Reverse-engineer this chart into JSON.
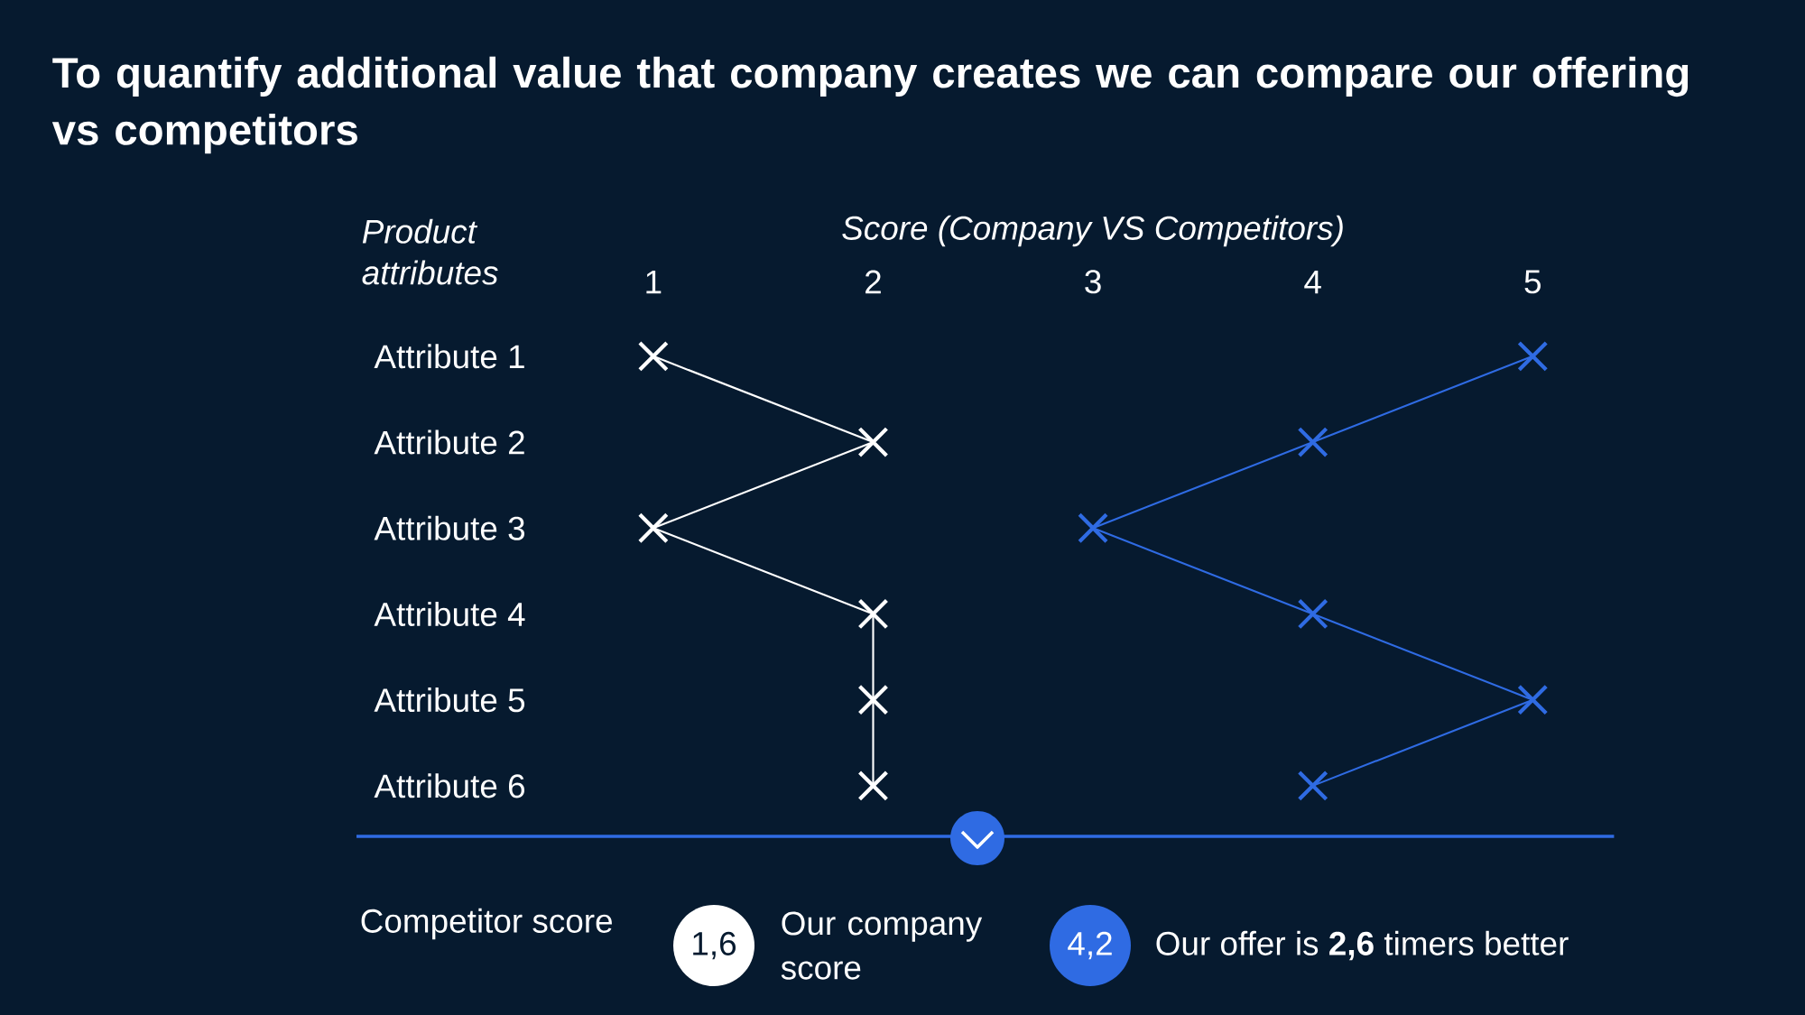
{
  "chart_data": {
    "type": "line",
    "orientation": "horizontal",
    "title": "To quantify additional value that company creates we can compare our offering vs competitors",
    "xlabel": "Score (Company VS Competitors)",
    "ylabel": "Product attributes",
    "categories": [
      "Attribute 1",
      "Attribute 2",
      "Attribute 3",
      "Attribute 4",
      "Attribute 5",
      "Attribute 6"
    ],
    "xlim": [
      -0.35,
      5.37
    ],
    "xticks": [
      1,
      2,
      3,
      4,
      5
    ],
    "marker": "cross",
    "line_style": "solid",
    "series": [
      {
        "color": "#ffffff",
        "values": [
          1,
          2,
          1,
          2,
          2,
          2
        ]
      },
      {
        "color": "#2f6be3",
        "values": [
          5,
          4,
          3,
          4,
          5,
          4
        ]
      }
    ],
    "annotations": [
      "Competitor score",
      "1,6",
      "Our company score",
      "4,2",
      "Our offer is **2,6** timers better"
    ]
  }
}
